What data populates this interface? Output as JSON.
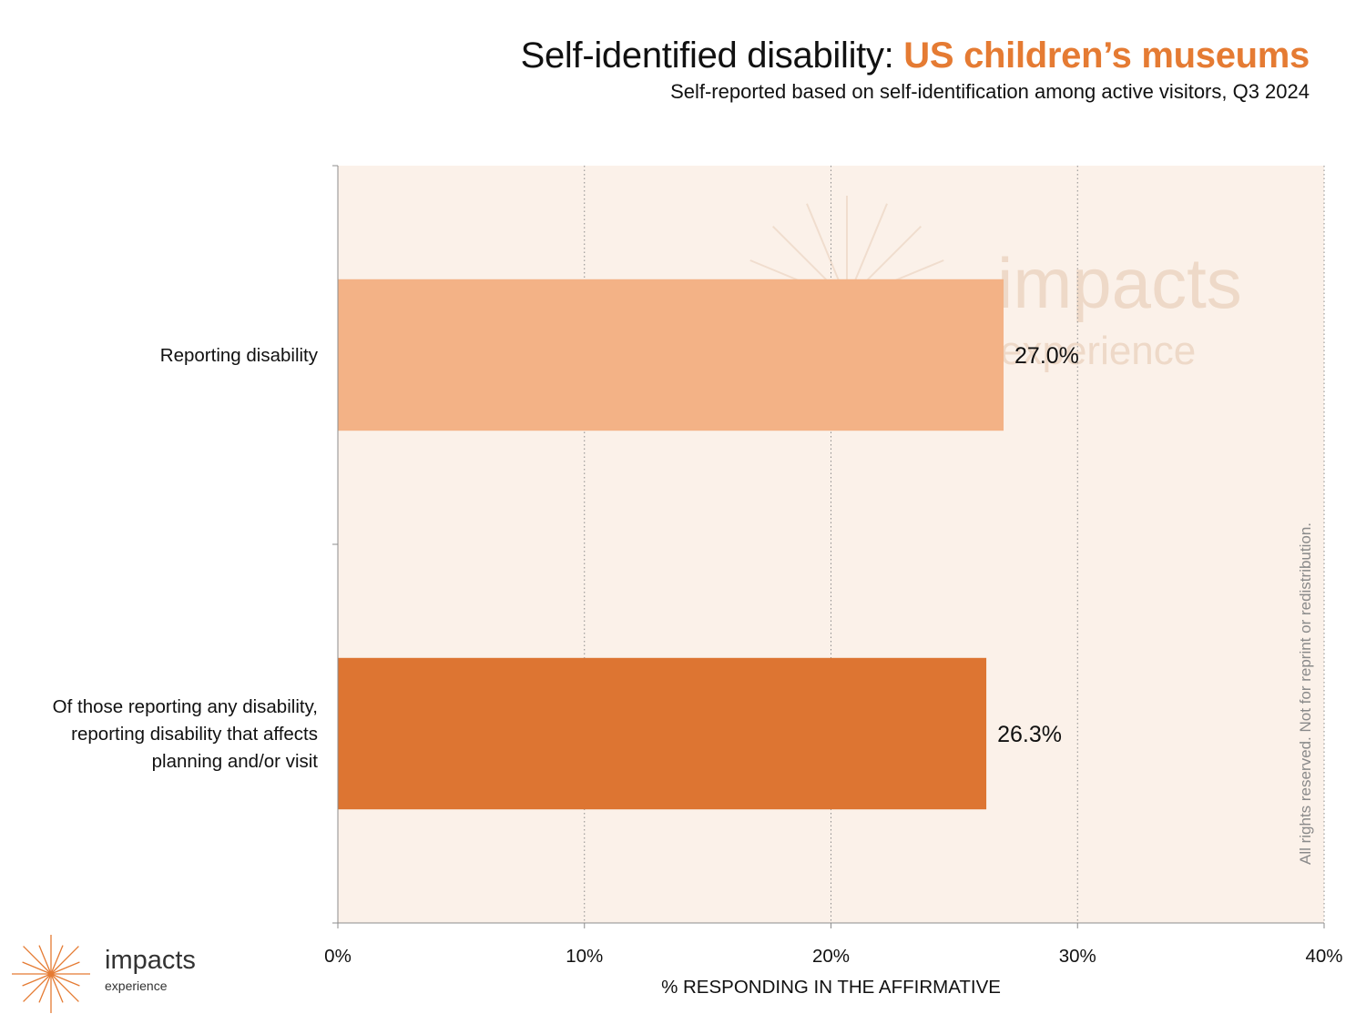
{
  "title": {
    "main": "Self-identified disability: ",
    "accent": "US children’s museums",
    "subtitle": "Self-reported based on self-identification among active visitors, Q3 2024"
  },
  "colors": {
    "background": "#ffffff",
    "plot_background": "#fbf1e9",
    "bar_light": "#f3b286",
    "bar_dark": "#dd7532",
    "accent_text": "#e57b33",
    "watermark": "#eed9c8"
  },
  "chart_data": {
    "type": "bar",
    "orientation": "horizontal",
    "categories": [
      "Reporting disability",
      "Of those reporting any disability, reporting disability that affects planning and/or visit"
    ],
    "category_lines": [
      [
        "Reporting disability"
      ],
      [
        "Of those reporting any disability,",
        "reporting disability that affects",
        "planning and/or visit"
      ]
    ],
    "values": [
      27.0,
      26.3
    ],
    "data_labels": [
      "27.0%",
      "26.3%"
    ],
    "bar_colors": [
      "#f3b286",
      "#dd7532"
    ],
    "xlabel": "% RESPONDING IN THE AFFIRMATIVE",
    "ylabel": "",
    "xlim": [
      0,
      40
    ],
    "x_ticks": [
      0,
      10,
      20,
      30,
      40
    ],
    "x_tick_labels": [
      "0%",
      "10%",
      "20%",
      "30%",
      "40%"
    ],
    "grid": "vertical dotted",
    "legend": "none"
  },
  "watermark": {
    "word": "impacts",
    "sub": "experience",
    "icon": "sunburst-icon"
  },
  "copyright": "All rights reserved. Not for reprint or redistribution.",
  "logo": {
    "word": "impacts",
    "sub": "experience",
    "icon": "sunburst-icon"
  }
}
